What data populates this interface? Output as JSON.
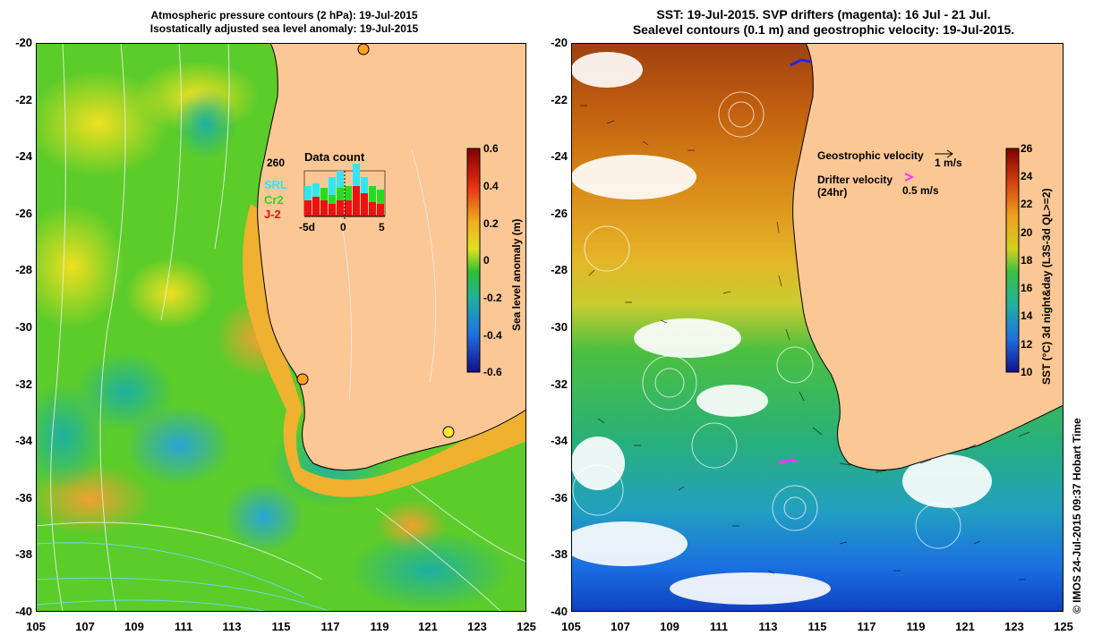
{
  "left_panel": {
    "title_line1": "Atmospheric pressure contours (2 hPa): 19-Jul-2015",
    "title_line2": "Isostatically adjusted sea level anomaly: 19-Jul-2015",
    "colorbar_label": "Sea level anomaly (m)",
    "colorbar_ticks": [
      "0.6",
      "0.4",
      "0.2",
      "0",
      "-0.2",
      "-0.4",
      "-0.6"
    ],
    "inset": {
      "count": "260",
      "title": "Data count",
      "legend": [
        {
          "label": "SRL",
          "color": "#33e5f0"
        },
        {
          "label": "Cr2",
          "color": "#22dd22"
        },
        {
          "label": "J-2",
          "color": "#ee1111"
        }
      ],
      "xticks": [
        "-5d",
        "0",
        "5"
      ]
    }
  },
  "right_panel": {
    "title_line1": "SST: 19-Jul-2015. SVP drifters (magenta): 16 Jul - 21 Jul.",
    "title_line2": "Sealevel contours (0.1 m) and geostrophic velocity: 19-Jul-2015.",
    "colorbar_label": "SST (°C) 3d night&day (L3S-3d QL>=2)",
    "colorbar_ticks": [
      "26",
      "24",
      "22",
      "20",
      "18",
      "16",
      "14",
      "12",
      "10"
    ],
    "geo_velocity_label": "Geostrophic velocity",
    "geo_velocity_scale": "1 m/s",
    "drifter_label_line1": "Drifter velocity",
    "drifter_label_line2": "(24hr)",
    "drifter_scale": "0.5 m/s"
  },
  "axes": {
    "lat_ticks": [
      "-20",
      "-22",
      "-24",
      "-26",
      "-28",
      "-30",
      "-32",
      "-34",
      "-36",
      "-38",
      "-40"
    ],
    "lon_ticks": [
      "105",
      "107",
      "109",
      "111",
      "113",
      "115",
      "117",
      "119",
      "121",
      "123",
      "125"
    ]
  },
  "credit": "© IMOS 24-Jul-2015 09:37 Hobart Time",
  "colors": {
    "land": "#fbc794",
    "ocean_green": "#44cc22",
    "sst_warm": "#c0620f",
    "sst_cool": "#1a8aee",
    "drifter": "#ff33ff"
  }
}
